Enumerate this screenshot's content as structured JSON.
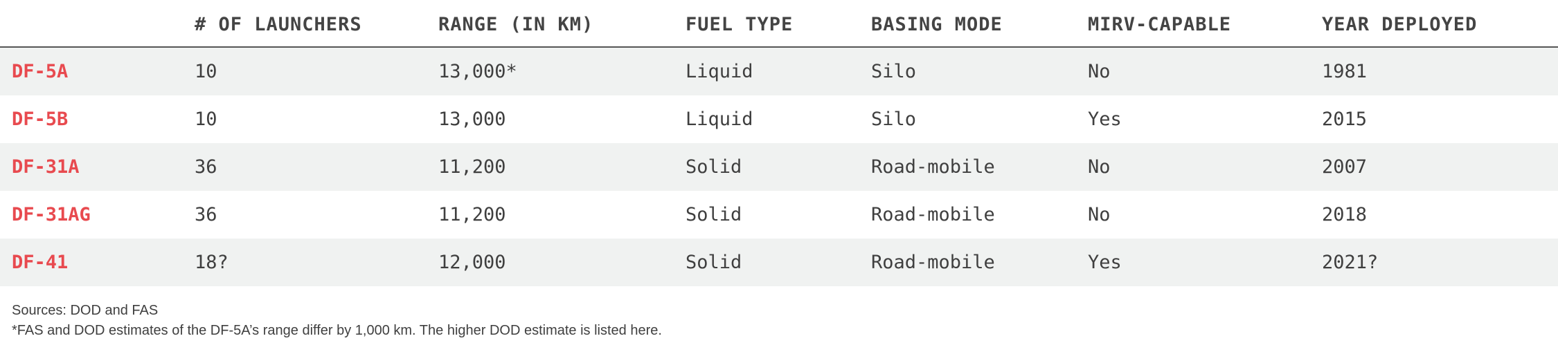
{
  "headers": [
    "",
    "# OF LAUNCHERS",
    "RANGE (IN KM)",
    "FUEL TYPE",
    "BASING MODE",
    "MIRV-CAPABLE",
    "YEAR DEPLOYED"
  ],
  "rows": [
    [
      "DF-5A",
      "10",
      "13,000*",
      "Liquid",
      "Silo",
      "No",
      "1981"
    ],
    [
      "DF-5B",
      "10",
      "13,000",
      "Liquid",
      "Silo",
      "Yes",
      "2015"
    ],
    [
      "DF-31A",
      "36",
      "11,200",
      "Solid",
      "Road-mobile",
      "No",
      "2007"
    ],
    [
      "DF-31AG",
      "36",
      "11,200",
      "Solid",
      "Road-mobile",
      "No",
      "2018"
    ],
    [
      "DF-41",
      "18?",
      "12,000",
      "Solid",
      "Road-mobile",
      "Yes",
      "2021?"
    ]
  ],
  "notes": {
    "sources": "Sources: DOD and FAS",
    "footnote": "*FAS and DOD estimates of the DF-5A’s range differ by 1,000 km.  The higher DOD estimate is listed here."
  },
  "colors": {
    "accent": "#e84a4f",
    "stripe": "#f0f2f1",
    "text": "#3f3f3f"
  }
}
